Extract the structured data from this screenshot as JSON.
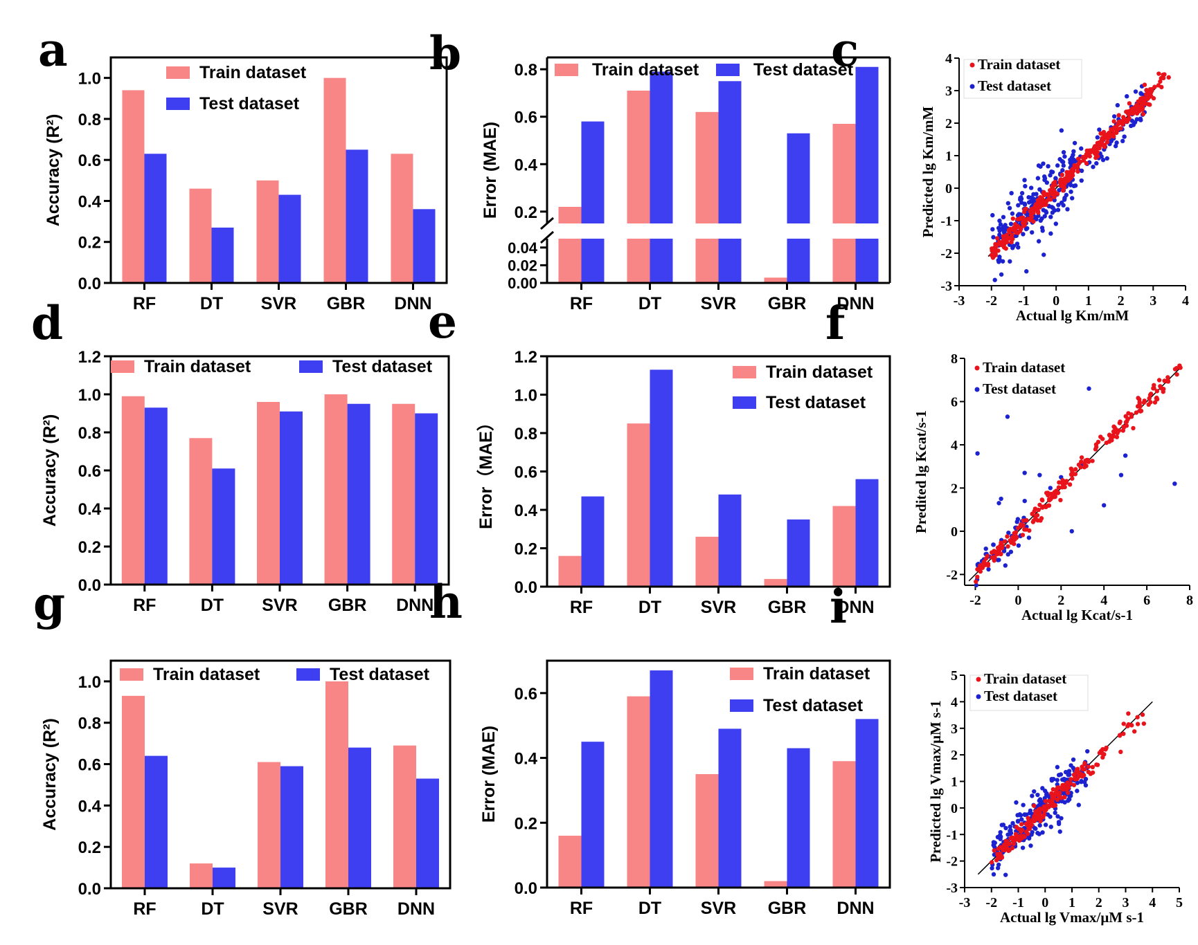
{
  "colors": {
    "train": "#f88686",
    "test": "#3f3ff2",
    "scatter_train": "#e8131b",
    "scatter_test": "#1d22cf",
    "axis": "#000000"
  },
  "panels": {
    "a": {
      "letter": "a"
    },
    "b": {
      "letter": "b"
    },
    "c": {
      "letter": "c"
    },
    "d": {
      "letter": "d"
    },
    "e": {
      "letter": "e"
    },
    "f": {
      "letter": "f"
    },
    "g": {
      "letter": "g"
    },
    "h": {
      "letter": "h"
    },
    "i": {
      "letter": "i"
    }
  },
  "chart_data": [
    {
      "id": "a",
      "type": "bar",
      "categories": [
        "RF",
        "DT",
        "SVR",
        "GBR",
        "DNN"
      ],
      "series": [
        {
          "name": "Train dataset",
          "values": [
            0.94,
            0.46,
            0.5,
            1.0,
            0.63
          ]
        },
        {
          "name": "Test dataset",
          "values": [
            0.63,
            0.27,
            0.43,
            0.65,
            0.36
          ]
        }
      ],
      "ylabel": "Accuracy (R²)",
      "ylim": [
        0,
        1.1
      ],
      "yticks": [
        "0.0",
        "0.2",
        "0.4",
        "0.6",
        "0.8",
        "1.0"
      ],
      "legend": "top-center (stacked)"
    },
    {
      "id": "b",
      "type": "bar",
      "broken_axis": true,
      "categories": [
        "RF",
        "DT",
        "SVR",
        "GBR",
        "DNN"
      ],
      "series": [
        {
          "name": "Train dataset",
          "values": [
            0.22,
            0.71,
            0.62,
            0.006,
            0.57
          ]
        },
        {
          "name": "Test dataset",
          "values": [
            0.58,
            0.79,
            0.75,
            0.53,
            0.81
          ]
        }
      ],
      "ylabel": "Error (MAE)",
      "ylim_lower": [
        0,
        0.05
      ],
      "ylim_upper": [
        0.15,
        0.85
      ],
      "yticks_lower": [
        "0.00",
        "0.02",
        "0.04"
      ],
      "yticks_upper": [
        "0.2",
        "0.4",
        "0.6",
        "0.8"
      ],
      "legend": "top (inline)"
    },
    {
      "id": "c",
      "type": "scatter",
      "series": [
        {
          "name": "Train dataset"
        },
        {
          "name": "Test dataset"
        }
      ],
      "xlabel": "Actual lg Km/mM",
      "ylabel": "Predicted lg Km/mM",
      "xlim": [
        -3,
        4
      ],
      "ylim": [
        -3,
        4
      ],
      "xticks": [
        "-3",
        "-2",
        "-1",
        "0",
        "1",
        "2",
        "3",
        "4"
      ],
      "yticks": [
        "-3",
        "-2",
        "-1",
        "0",
        "1",
        "2",
        "3",
        "4"
      ],
      "legend": "top-left"
    },
    {
      "id": "d",
      "type": "bar",
      "categories": [
        "RF",
        "DT",
        "SVR",
        "GBR",
        "DNN"
      ],
      "series": [
        {
          "name": "Train dataset",
          "values": [
            0.99,
            0.77,
            0.96,
            1.0,
            0.95
          ]
        },
        {
          "name": "Test dataset",
          "values": [
            0.93,
            0.61,
            0.91,
            0.95,
            0.9
          ]
        }
      ],
      "ylabel": "Accuracy (R²)",
      "ylim": [
        0,
        1.2
      ],
      "yticks": [
        "0.0",
        "0.2",
        "0.4",
        "0.6",
        "0.8",
        "1.0",
        "1.2"
      ],
      "legend": "top (inline)"
    },
    {
      "id": "e",
      "type": "bar",
      "categories": [
        "RF",
        "DT",
        "SVR",
        "GBR",
        "DNN"
      ],
      "series": [
        {
          "name": "Train dataset",
          "values": [
            0.16,
            0.85,
            0.26,
            0.04,
            0.42
          ]
        },
        {
          "name": "Test dataset",
          "values": [
            0.47,
            1.13,
            0.48,
            0.35,
            0.56
          ]
        }
      ],
      "ylabel": "Error（MAE）",
      "ylim": [
        0,
        1.2
      ],
      "yticks": [
        "0.0",
        "0.2",
        "0.4",
        "0.6",
        "0.8",
        "1.0",
        "1.2"
      ],
      "legend": "top-right (stacked)"
    },
    {
      "id": "f",
      "type": "scatter",
      "series": [
        {
          "name": "Train dataset"
        },
        {
          "name": "Test dataset"
        }
      ],
      "xlabel": "Actual lg Kcat/s-1",
      "ylabel": "Predited lg Kcat/s-1",
      "xlim": [
        -2.5,
        8
      ],
      "ylim": [
        -2.5,
        8
      ],
      "xticks": [
        "-2",
        "0",
        "2",
        "4",
        "6",
        "8"
      ],
      "yticks": [
        "-2",
        "0",
        "2",
        "4",
        "6",
        "8"
      ],
      "legend": "top-left"
    },
    {
      "id": "g",
      "type": "bar",
      "categories": [
        "RF",
        "DT",
        "SVR",
        "GBR",
        "DNN"
      ],
      "series": [
        {
          "name": "Train dataset",
          "values": [
            0.93,
            0.12,
            0.61,
            1.0,
            0.69
          ]
        },
        {
          "name": "Test dataset",
          "values": [
            0.64,
            0.1,
            0.59,
            0.68,
            0.53
          ]
        }
      ],
      "ylabel": "Accuracy (R²)",
      "ylim": [
        0,
        1.1
      ],
      "yticks": [
        "0.0",
        "0.2",
        "0.4",
        "0.6",
        "0.8",
        "1.0"
      ],
      "legend": "top (inline)"
    },
    {
      "id": "h",
      "type": "bar",
      "categories": [
        "RF",
        "DT",
        "SVR",
        "GBR",
        "DNN"
      ],
      "series": [
        {
          "name": "Train dataset",
          "values": [
            0.16,
            0.59,
            0.35,
            0.02,
            0.39
          ]
        },
        {
          "name": "Test dataset",
          "values": [
            0.45,
            0.67,
            0.49,
            0.43,
            0.52
          ]
        }
      ],
      "ylabel": "Error (MAE)",
      "ylim": [
        0,
        0.7
      ],
      "yticks": [
        "0.0",
        "0.2",
        "0.4",
        "0.6"
      ],
      "legend": "top-right (stacked)"
    },
    {
      "id": "i",
      "type": "scatter",
      "series": [
        {
          "name": "Train dataset"
        },
        {
          "name": "Test dataset"
        }
      ],
      "xlabel": "Actual lg Vmax/μM s-1",
      "ylabel": "Predicted lg Vmax/μM s-1",
      "xlim": [
        -3,
        5
      ],
      "ylim": [
        -3,
        5
      ],
      "xticks": [
        "-3",
        "-2",
        "-1",
        "0",
        "1",
        "2",
        "3",
        "4",
        "5"
      ],
      "yticks": [
        "-3",
        "-2",
        "-1",
        "0",
        "1",
        "2",
        "3",
        "4",
        "5"
      ],
      "legend": "top-left"
    }
  ]
}
